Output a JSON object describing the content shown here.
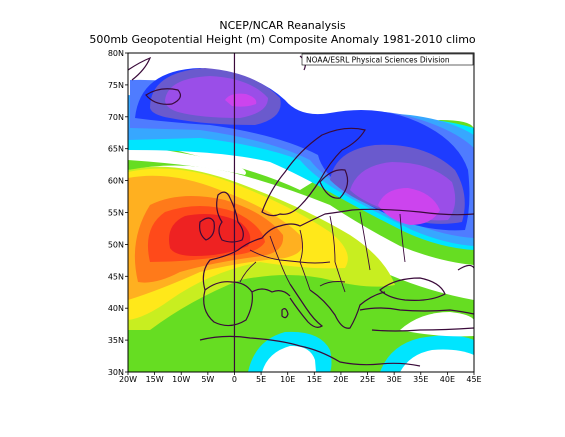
{
  "header": {
    "title": "NCEP/NCAR Reanalysis",
    "subtitle": "500mb Geopotential Height (m) Composite Anomaly 1981-2010 climo"
  },
  "credit": "NOAA/ESRL Physical Sciences Division",
  "map": {
    "projection": "equirectangular",
    "lon_range": [
      -20,
      45
    ],
    "lat_range": [
      30,
      80
    ],
    "reference_meridian_lon": 0,
    "lon_ticks": [
      {
        "value": -20,
        "label": "20W"
      },
      {
        "value": -15,
        "label": "15W"
      },
      {
        "value": -10,
        "label": "10W"
      },
      {
        "value": -5,
        "label": "5W"
      },
      {
        "value": 0,
        "label": "0"
      },
      {
        "value": 5,
        "label": "5E"
      },
      {
        "value": 10,
        "label": "10E"
      },
      {
        "value": 15,
        "label": "15E"
      },
      {
        "value": 20,
        "label": "20E"
      },
      {
        "value": 25,
        "label": "25E"
      },
      {
        "value": 30,
        "label": "30E"
      },
      {
        "value": 35,
        "label": "35E"
      },
      {
        "value": 40,
        "label": "40E"
      },
      {
        "value": 45,
        "label": "45E"
      }
    ],
    "lat_ticks": [
      {
        "value": 80,
        "label": "80N"
      },
      {
        "value": 75,
        "label": "75N"
      },
      {
        "value": 70,
        "label": "70N"
      },
      {
        "value": 65,
        "label": "65N"
      },
      {
        "value": 60,
        "label": "60N"
      },
      {
        "value": 55,
        "label": "55N"
      },
      {
        "value": 50,
        "label": "50N"
      },
      {
        "value": 45,
        "label": "45N"
      },
      {
        "value": 40,
        "label": "40N"
      },
      {
        "value": 35,
        "label": "35N"
      },
      {
        "value": 30,
        "label": "30N"
      }
    ],
    "palette": {
      "deep_purple": "#8a2be2",
      "purple": "#9a4ee8",
      "blue_purple": "#6a5acd",
      "blue": "#1e3cff",
      "cornflower": "#4f7cff",
      "sky": "#37a7ff",
      "cyan": "#00e5ff",
      "white": "#ffffff",
      "green": "#66dd22",
      "yellow_green": "#c8ee20",
      "yellow": "#ffe81a",
      "orange": "#ffb020",
      "dark_orange": "#ff7a1a",
      "red_orange": "#ff4a1a",
      "red": "#ee2222",
      "magenta": "#cc44ee",
      "land_outline": "#3a0a3a"
    }
  }
}
